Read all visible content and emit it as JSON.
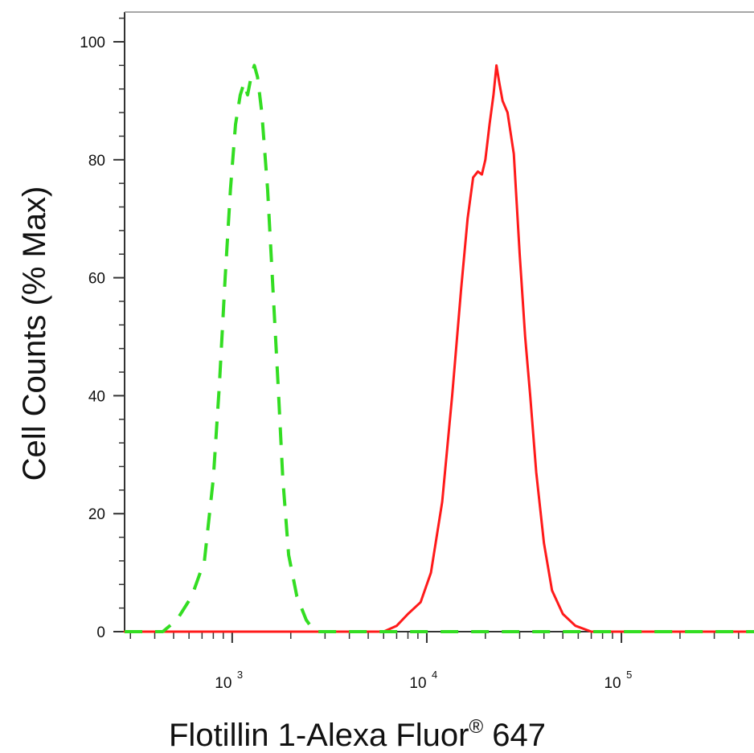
{
  "chart_data": {
    "type": "line",
    "xlabel": "Flotillin 1-Alexa Fluor",
    "xlabel_mark": "®",
    "xlabel_suffix": " 647",
    "ylabel": "Cell Counts (% Max)",
    "x_scale": "log",
    "xlim": [
      280,
      480000
    ],
    "ylim": [
      0,
      100
    ],
    "y_ticks": [
      "0",
      "20",
      "40",
      "60",
      "80",
      "100"
    ],
    "x_ticks": [
      {
        "base": "10",
        "exp": "3"
      },
      {
        "base": "10",
        "exp": "4"
      },
      {
        "base": "10",
        "exp": "5"
      }
    ],
    "grid": false,
    "legend": "none",
    "series": [
      {
        "color": "#ff1a1a",
        "style": "solid",
        "points": [
          [
            280,
            0
          ],
          [
            4500,
            0
          ],
          [
            6000,
            0
          ],
          [
            7000,
            1
          ],
          [
            8000,
            3
          ],
          [
            9300,
            5
          ],
          [
            10500,
            10
          ],
          [
            12000,
            22
          ],
          [
            13500,
            40
          ],
          [
            15000,
            58
          ],
          [
            16200,
            70
          ],
          [
            17300,
            77
          ],
          [
            18300,
            78
          ],
          [
            19200,
            77.5
          ],
          [
            20000,
            80
          ],
          [
            21000,
            86
          ],
          [
            22000,
            91
          ],
          [
            22800,
            96
          ],
          [
            23600,
            93
          ],
          [
            24500,
            90
          ],
          [
            26000,
            88
          ],
          [
            28000,
            81
          ],
          [
            30000,
            64
          ],
          [
            32000,
            50
          ],
          [
            34000,
            40
          ],
          [
            36500,
            27
          ],
          [
            40000,
            15
          ],
          [
            44000,
            7
          ],
          [
            50000,
            3
          ],
          [
            58000,
            1
          ],
          [
            70000,
            0
          ],
          [
            480000,
            0
          ]
        ]
      },
      {
        "color": "#33dd22",
        "style": "dashed",
        "points": [
          [
            280,
            0
          ],
          [
            440,
            0
          ],
          [
            520,
            2
          ],
          [
            620,
            6
          ],
          [
            720,
            12
          ],
          [
            800,
            26
          ],
          [
            860,
            42
          ],
          [
            920,
            60
          ],
          [
            980,
            75
          ],
          [
            1040,
            86
          ],
          [
            1100,
            91
          ],
          [
            1150,
            93
          ],
          [
            1200,
            91
          ],
          [
            1250,
            94
          ],
          [
            1300,
            96
          ],
          [
            1350,
            94
          ],
          [
            1420,
            88
          ],
          [
            1520,
            75
          ],
          [
            1620,
            58
          ],
          [
            1720,
            42
          ],
          [
            1820,
            26
          ],
          [
            1950,
            13
          ],
          [
            2150,
            6
          ],
          [
            2400,
            2
          ],
          [
            2650,
            0
          ],
          [
            480000,
            0
          ]
        ]
      }
    ]
  }
}
